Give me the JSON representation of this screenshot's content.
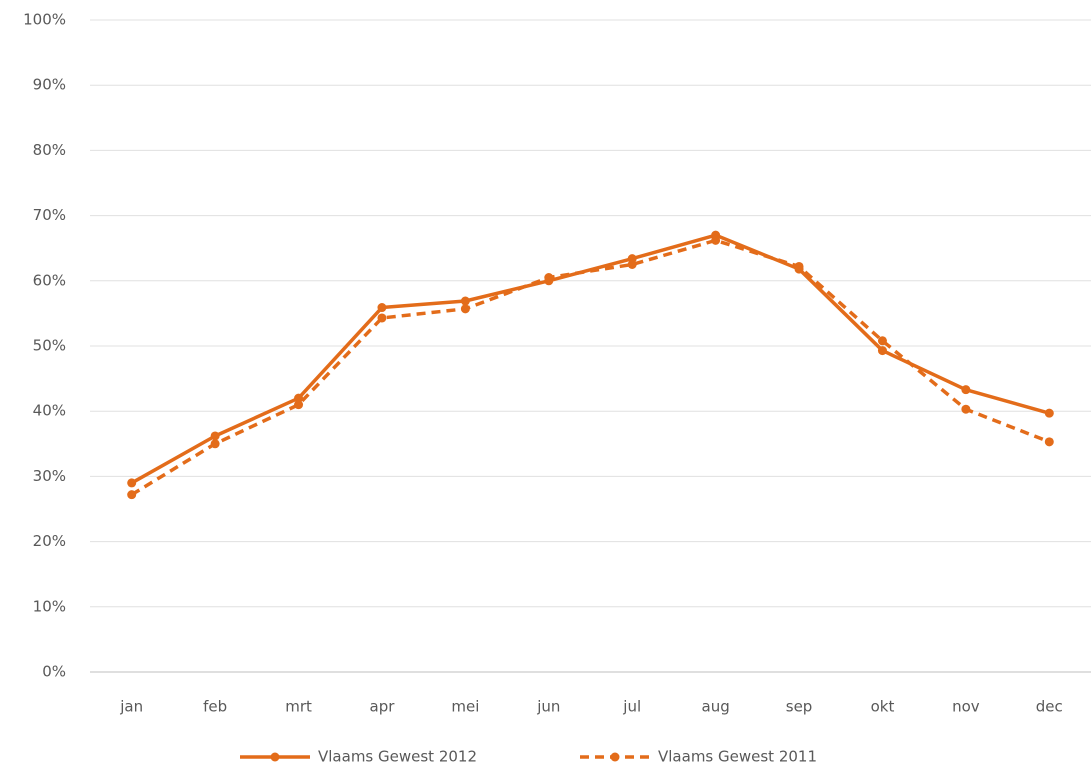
{
  "chart_data": {
    "type": "line",
    "categories": [
      "jan",
      "feb",
      "mrt",
      "apr",
      "mei",
      "jun",
      "jul",
      "aug",
      "sep",
      "okt",
      "nov",
      "dec"
    ],
    "series": [
      {
        "name": "Vlaams Gewest 2012",
        "color": "#e36c1a",
        "line_style": "solid",
        "values": [
          29,
          36.2,
          42,
          55.9,
          56.9,
          60,
          63.4,
          67,
          61.8,
          49.3,
          43.3,
          39.7
        ]
      },
      {
        "name": "Vlaams Gewest 2011",
        "color": "#e36c1a",
        "line_style": "dashed",
        "values": [
          27.2,
          35,
          41,
          54.3,
          55.7,
          60.5,
          62.5,
          66.2,
          62.2,
          50.8,
          40.3,
          35.3
        ]
      }
    ],
    "ylim": [
      0,
      100
    ],
    "yticks": [
      {
        "value": 0,
        "label": "0%"
      },
      {
        "value": 10,
        "label": "10%"
      },
      {
        "value": 20,
        "label": "20%"
      },
      {
        "value": 30,
        "label": "30%"
      },
      {
        "value": 40,
        "label": "40%"
      },
      {
        "value": 50,
        "label": "50%"
      },
      {
        "value": 60,
        "label": "60%"
      },
      {
        "value": 70,
        "label": "70%"
      },
      {
        "value": 80,
        "label": "80%"
      },
      {
        "value": 90,
        "label": "90%"
      },
      {
        "value": 100,
        "label": "100%"
      }
    ],
    "grid": true,
    "legend": "bottom"
  }
}
